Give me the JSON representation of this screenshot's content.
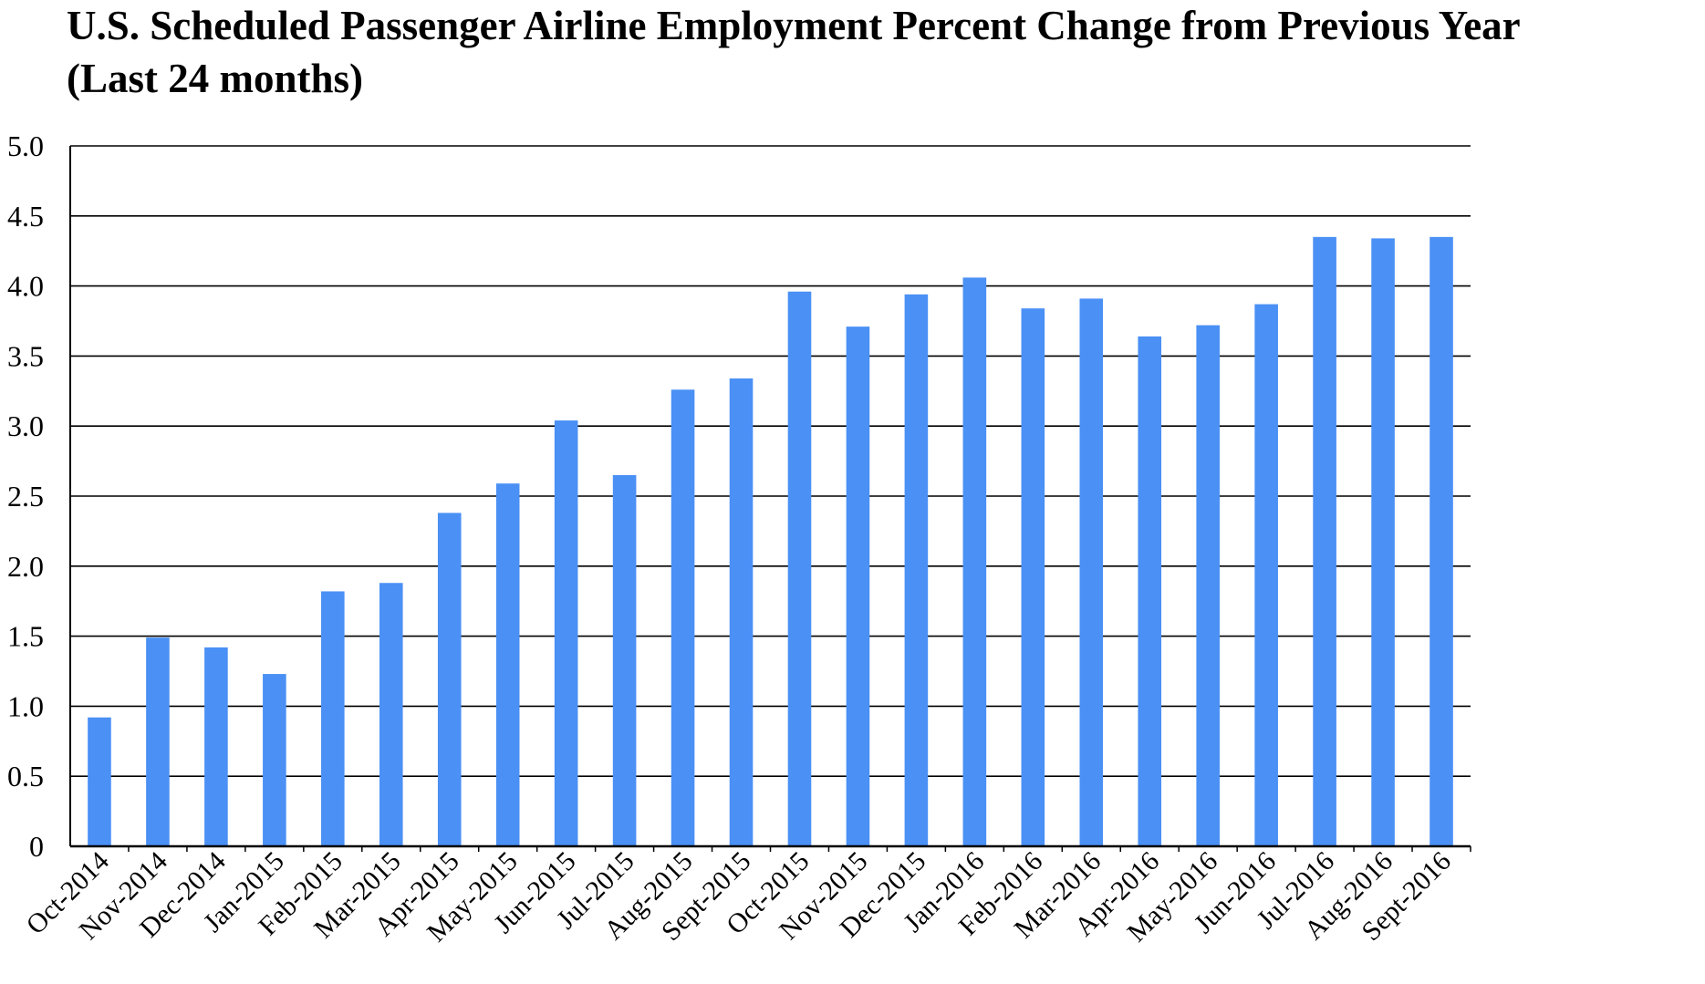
{
  "chart_data": {
    "type": "bar",
    "title": "U.S. Scheduled Passenger Airline Employment Percent Change from Previous Year",
    "subtitle": "(Last 24 months)",
    "xlabel": "",
    "ylabel": "",
    "ylim": [
      0,
      5.0
    ],
    "yticks": [
      "0",
      "0.5",
      "1.0",
      "1.5",
      "2.0",
      "2.5",
      "3.0",
      "3.5",
      "4.0",
      "4.5",
      "5.0"
    ],
    "ytick_values": [
      0,
      0.5,
      1.0,
      1.5,
      2.0,
      2.5,
      3.0,
      3.5,
      4.0,
      4.5,
      5.0
    ],
    "grid": true,
    "legend": "none",
    "bar_color": "#4a90f5",
    "categories": [
      "Oct-2014",
      "Nov-2014",
      "Dec-2014",
      "Jan-2015",
      "Feb-2015",
      "Mar-2015",
      "Apr-2015",
      "May-2015",
      "Jun-2015",
      "Jul-2015",
      "Aug-2015",
      "Sept-2015",
      "Oct-2015",
      "Nov-2015",
      "Dec-2015",
      "Jan-2016",
      "Feb-2016",
      "Mar-2016",
      "Apr-2016",
      "May-2016",
      "Jun-2016",
      "Jul-2016",
      "Aug-2016",
      "Sept-2016"
    ],
    "values": [
      0.92,
      1.49,
      1.42,
      1.23,
      1.82,
      1.88,
      2.38,
      2.59,
      3.04,
      2.65,
      3.26,
      3.34,
      3.96,
      3.71,
      3.94,
      4.06,
      3.84,
      3.91,
      3.64,
      3.72,
      3.87,
      4.35,
      4.34,
      4.35
    ]
  }
}
